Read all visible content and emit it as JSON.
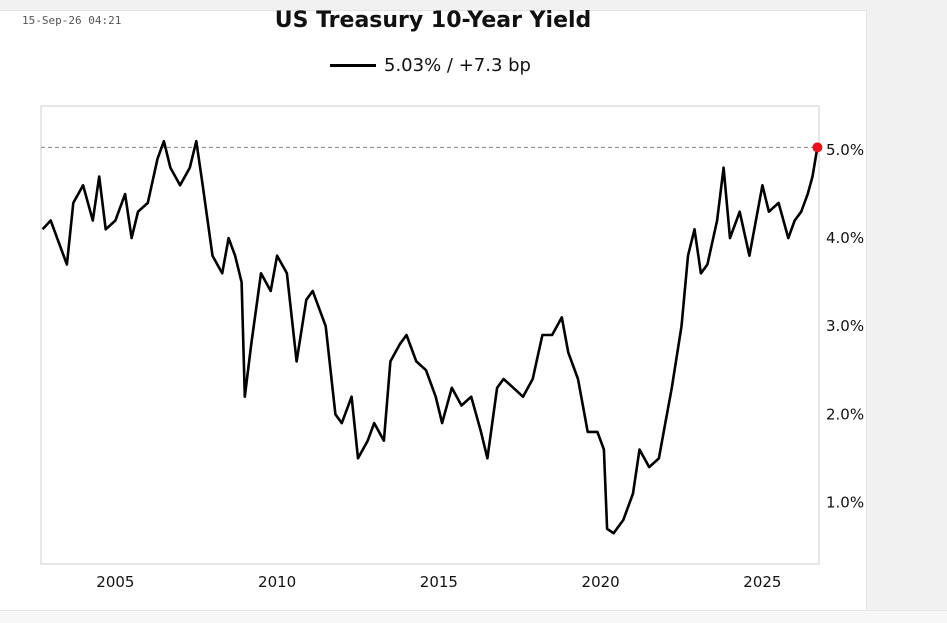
{
  "header": {
    "timestamp": "15-Sep-26 04:21",
    "title": "US Treasury 10-Year Yield",
    "legend_label": "5.03% / +7.3 bp"
  },
  "chart_data": {
    "type": "line",
    "title": "US Treasury 10-Year Yield",
    "xlabel": "",
    "ylabel": "",
    "xlim": [
      2002.7,
      2026.75
    ],
    "ylim": [
      0.3,
      5.5
    ],
    "x_ticks": [
      2005,
      2010,
      2015,
      2020,
      2025
    ],
    "x_tick_labels": [
      "2005",
      "2010",
      "2015",
      "2020",
      "2025"
    ],
    "y_ticks": [
      1.0,
      2.0,
      3.0,
      4.0,
      5.0
    ],
    "y_tick_labels": [
      "1.0%",
      "2.0%",
      "3.0%",
      "4.0%",
      "5.0%"
    ],
    "y_axis_position": "right",
    "grid": false,
    "reference_line": {
      "y": 5.03,
      "style": "dashed"
    },
    "last_point_marker": {
      "x": 2026.7,
      "y": 5.03,
      "color": "#e8121b"
    },
    "line_color": "#000000",
    "series": [
      {
        "name": "5.03% / +7.3 bp",
        "x": [
          2002.75,
          2003.0,
          2003.3,
          2003.5,
          2003.7,
          2004.0,
          2004.3,
          2004.5,
          2004.7,
          2005.0,
          2005.3,
          2005.5,
          2005.7,
          2006.0,
          2006.3,
          2006.5,
          2006.7,
          2007.0,
          2007.3,
          2007.5,
          2007.7,
          2008.0,
          2008.3,
          2008.5,
          2008.7,
          2008.9,
          2009.0,
          2009.2,
          2009.5,
          2009.8,
          2010.0,
          2010.3,
          2010.6,
          2010.9,
          2011.1,
          2011.5,
          2011.8,
          2012.0,
          2012.3,
          2012.5,
          2012.8,
          2013.0,
          2013.3,
          2013.5,
          2013.8,
          2014.0,
          2014.3,
          2014.6,
          2014.9,
          2015.1,
          2015.4,
          2015.7,
          2016.0,
          2016.3,
          2016.5,
          2016.8,
          2017.0,
          2017.3,
          2017.6,
          2017.9,
          2018.2,
          2018.5,
          2018.8,
          2019.0,
          2019.3,
          2019.6,
          2019.9,
          2020.1,
          2020.2,
          2020.4,
          2020.7,
          2021.0,
          2021.2,
          2021.5,
          2021.8,
          2022.0,
          2022.2,
          2022.5,
          2022.7,
          2022.9,
          2023.1,
          2023.3,
          2023.6,
          2023.8,
          2024.0,
          2024.3,
          2024.6,
          2024.8,
          2025.0,
          2025.2,
          2025.5,
          2025.8,
          2026.0,
          2026.2,
          2026.4,
          2026.55,
          2026.7
        ],
        "y": [
          4.1,
          4.2,
          3.9,
          3.7,
          4.4,
          4.6,
          4.2,
          4.7,
          4.1,
          4.2,
          4.5,
          4.0,
          4.3,
          4.4,
          4.9,
          5.1,
          4.8,
          4.6,
          4.8,
          5.1,
          4.6,
          3.8,
          3.6,
          4.0,
          3.8,
          3.5,
          2.2,
          2.8,
          3.6,
          3.4,
          3.8,
          3.6,
          2.6,
          3.3,
          3.4,
          3.0,
          2.0,
          1.9,
          2.2,
          1.5,
          1.7,
          1.9,
          1.7,
          2.6,
          2.8,
          2.9,
          2.6,
          2.5,
          2.2,
          1.9,
          2.3,
          2.1,
          2.2,
          1.8,
          1.5,
          2.3,
          2.4,
          2.3,
          2.2,
          2.4,
          2.9,
          2.9,
          3.1,
          2.7,
          2.4,
          1.8,
          1.8,
          1.6,
          0.7,
          0.65,
          0.8,
          1.1,
          1.6,
          1.4,
          1.5,
          1.9,
          2.3,
          3.0,
          3.8,
          4.1,
          3.6,
          3.7,
          4.2,
          4.8,
          4.0,
          4.3,
          3.8,
          4.2,
          4.6,
          4.3,
          4.4,
          4.0,
          4.2,
          4.3,
          4.5,
          4.7,
          5.03
        ]
      }
    ]
  }
}
